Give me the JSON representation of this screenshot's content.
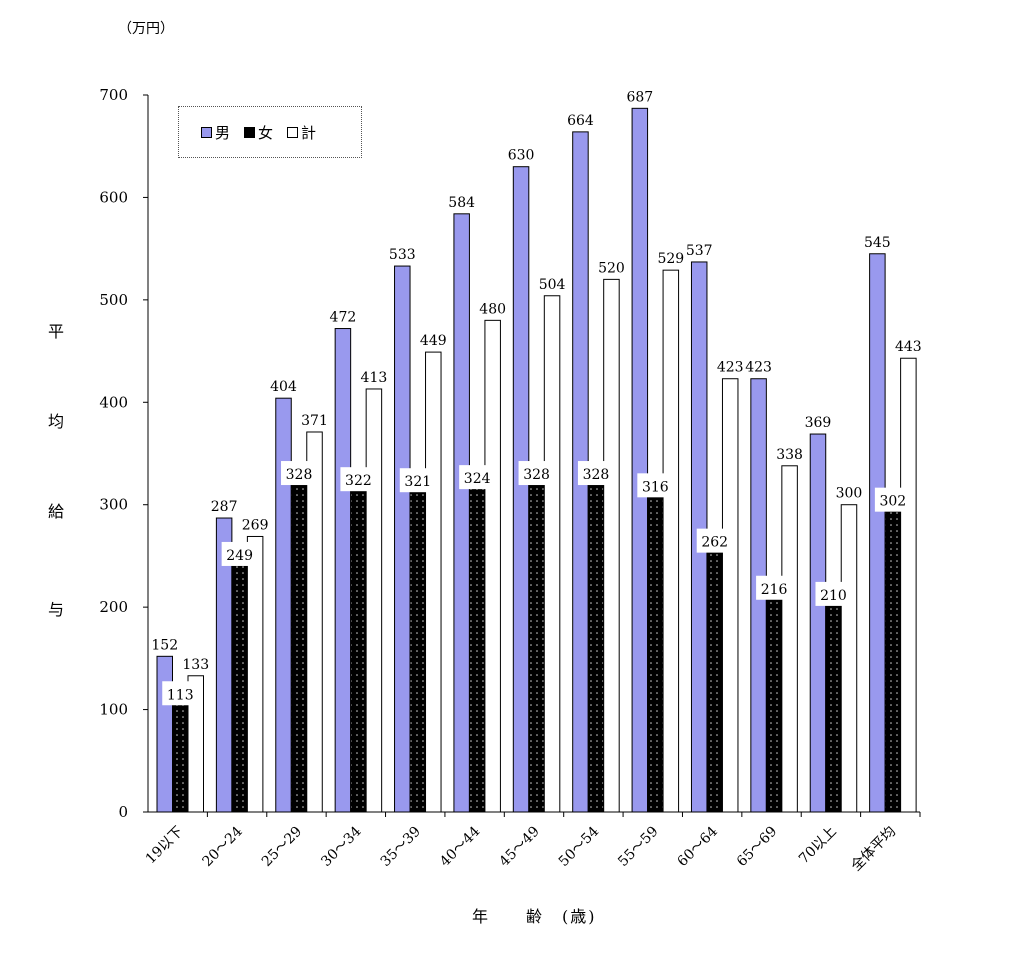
{
  "unit_label": "（万円）",
  "y_axis_chars": [
    "平",
    "均",
    "給",
    "与"
  ],
  "x_axis_title": "年　　齢　(歳)",
  "legend": [
    {
      "label": "男",
      "color": "#9999ee"
    },
    {
      "label": "女",
      "color": "#000000"
    },
    {
      "label": "計",
      "color": "#ffffff"
    }
  ],
  "chart_data": {
    "type": "bar",
    "categories": [
      "19以下",
      "20～24",
      "25～29",
      "30～34",
      "35～39",
      "40～44",
      "45～49",
      "50～54",
      "55～59",
      "60～64",
      "65～69",
      "70以上",
      "全体平均"
    ],
    "series": [
      {
        "name": "男",
        "values": [
          152,
          287,
          404,
          472,
          533,
          584,
          630,
          664,
          687,
          537,
          423,
          369,
          545
        ]
      },
      {
        "name": "女",
        "values": [
          113,
          249,
          328,
          322,
          321,
          324,
          328,
          328,
          316,
          262,
          216,
          210,
          302
        ]
      },
      {
        "name": "計",
        "values": [
          133,
          269,
          371,
          413,
          449,
          480,
          504,
          520,
          529,
          423,
          338,
          300,
          443
        ]
      }
    ],
    "yticks": [
      "0",
      "100",
      "200",
      "300",
      "400",
      "500",
      "600",
      "700"
    ],
    "ylim": [
      0,
      700
    ],
    "grid": false,
    "legend_position": "top-left"
  }
}
